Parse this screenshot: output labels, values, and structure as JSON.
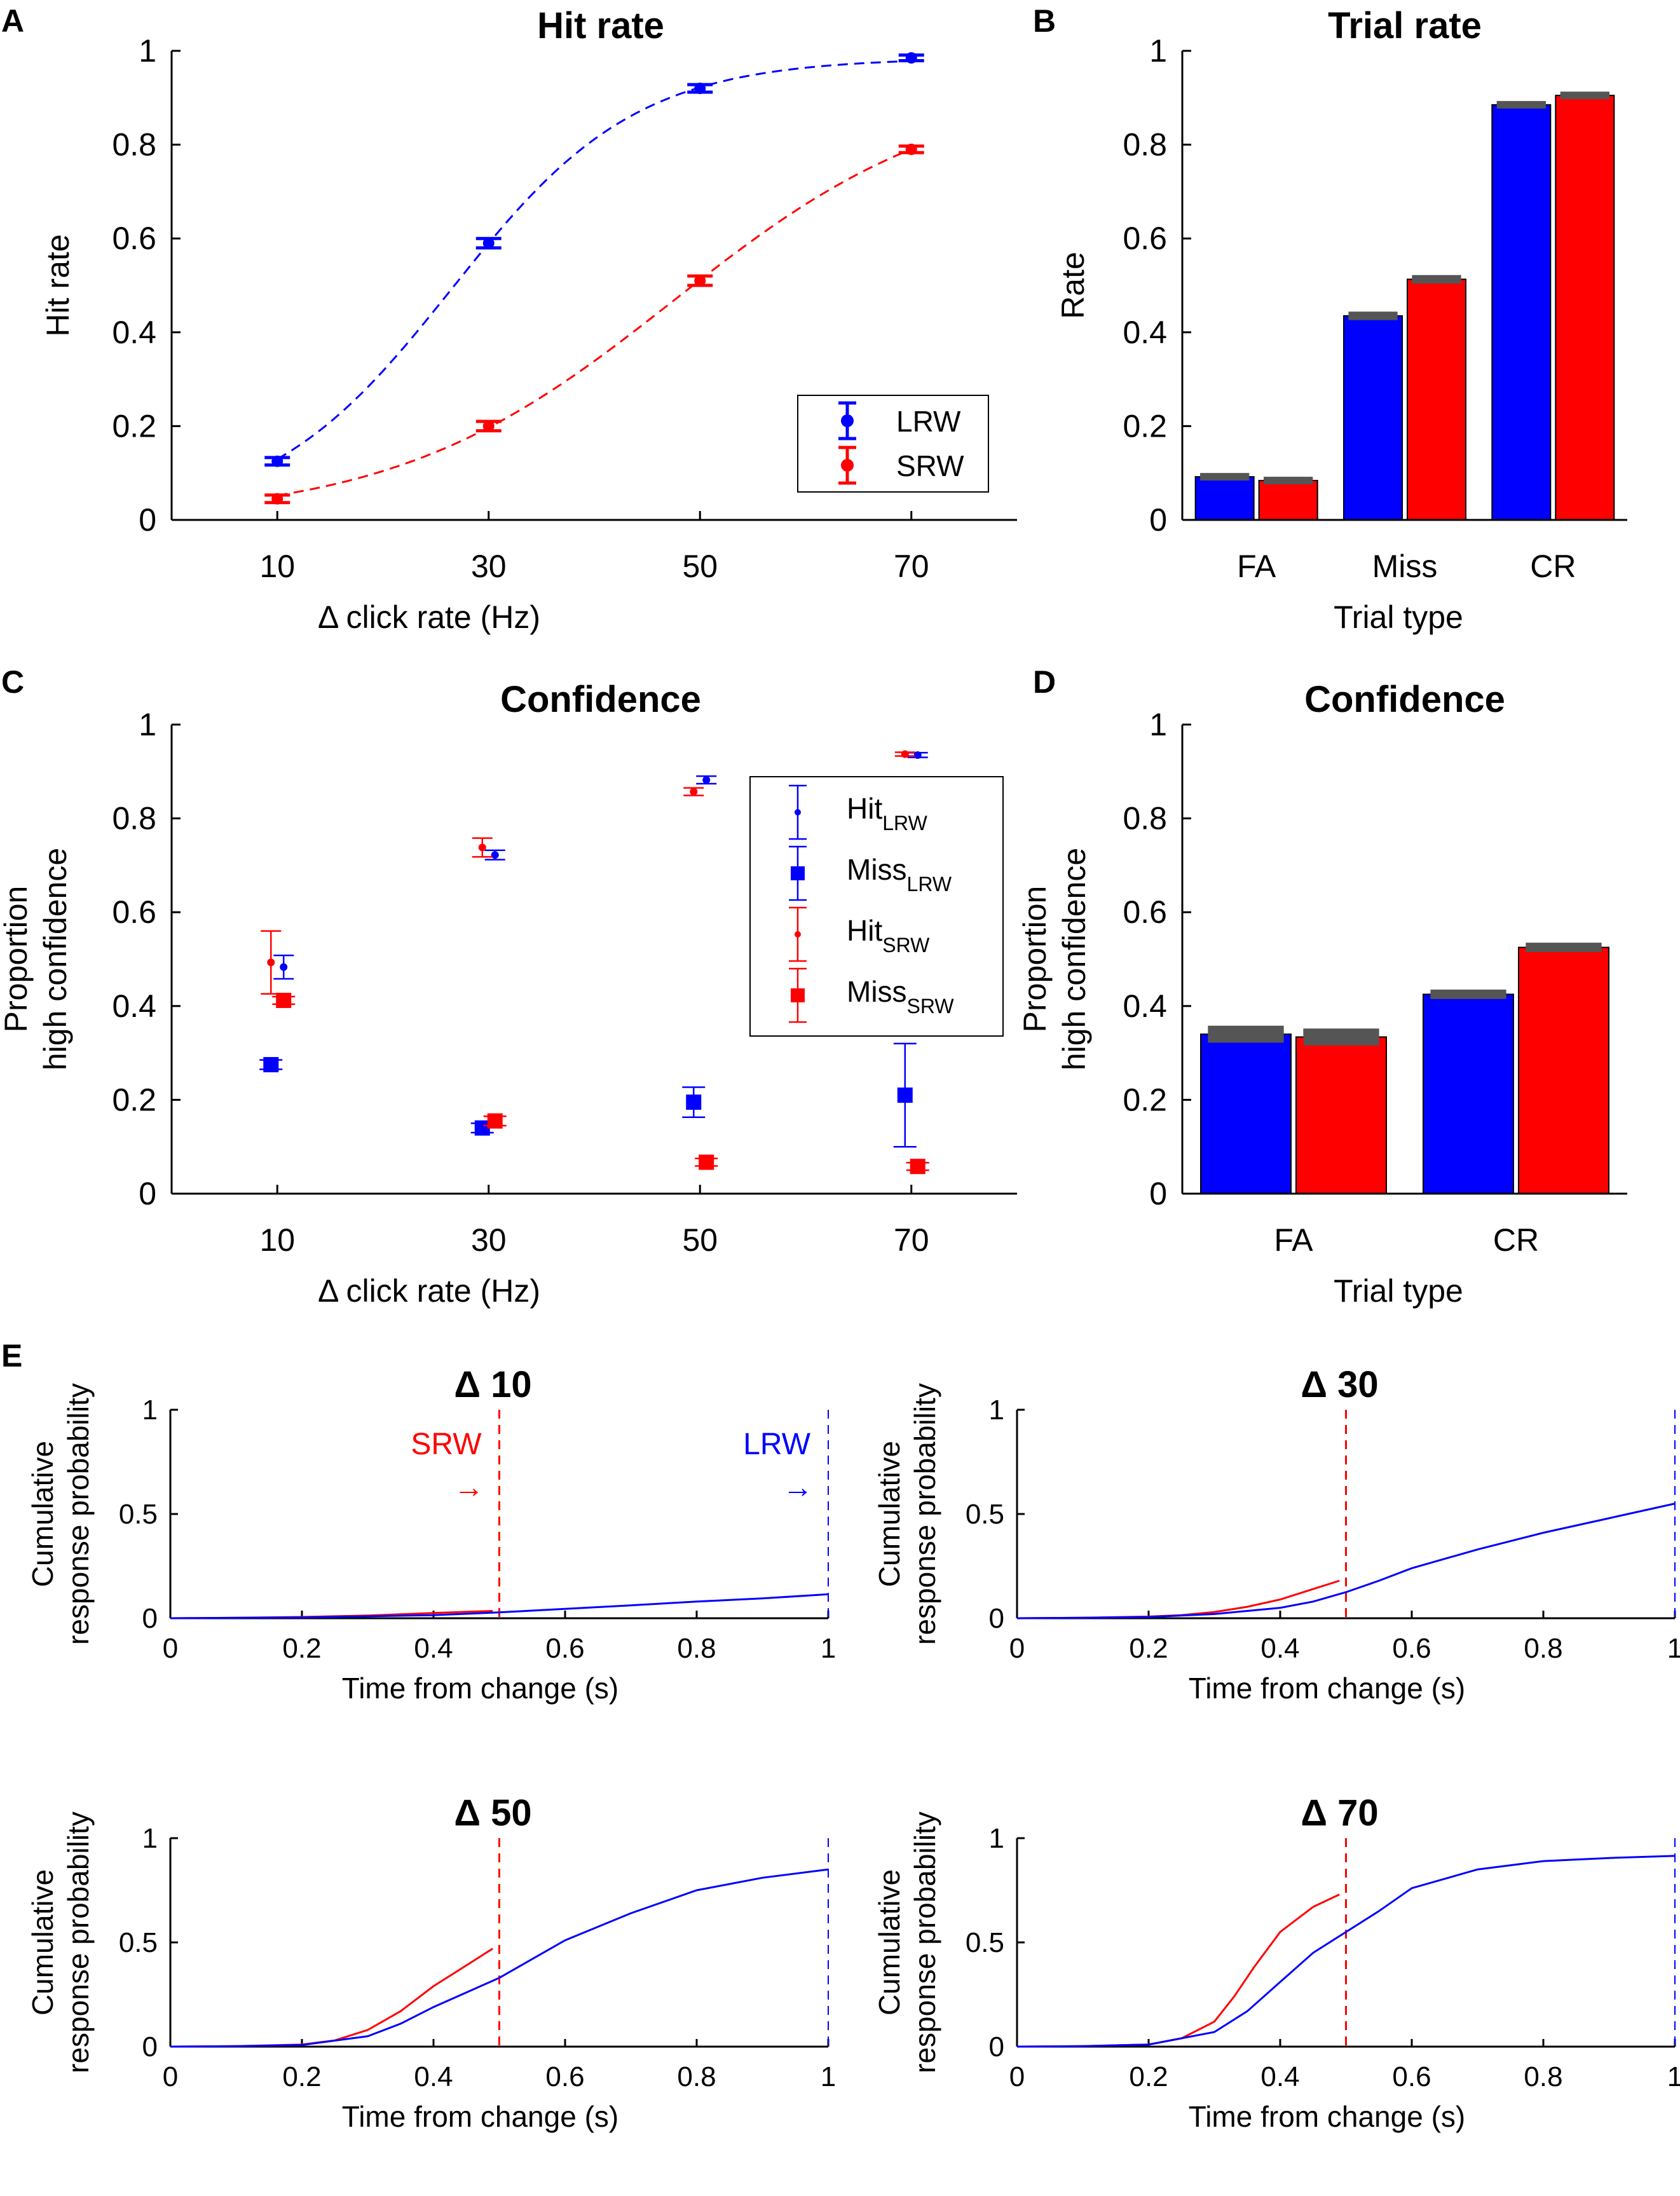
{
  "figure": {
    "panel_letters": [
      "A",
      "B",
      "C",
      "D",
      "E"
    ]
  },
  "colors": {
    "lrw": "#0000ff",
    "srw": "#ff0000",
    "errorbar_cap": "#555555"
  },
  "chart_data": [
    {
      "id": "A",
      "type": "scatter",
      "title": "Hit rate",
      "xlabel": "Δ click rate (Hz)",
      "ylabel": "Hit rate",
      "x": [
        10,
        30,
        50,
        70
      ],
      "xticks": [
        "10",
        "30",
        "50",
        "70"
      ],
      "xlim": [
        0,
        80
      ],
      "ylim": [
        0,
        1
      ],
      "yticks": [
        "0",
        "0.2",
        "0.4",
        "0.6",
        "0.8",
        "1"
      ],
      "legend": {
        "position": "bottom-right",
        "entries": [
          "LRW",
          "SRW"
        ]
      },
      "series": [
        {
          "name": "LRW",
          "color": "#0000ff",
          "values": [
            0.125,
            0.59,
            0.92,
            0.985
          ],
          "errors": [
            0.008,
            0.01,
            0.008,
            0.006
          ],
          "fit": "dashed logistic"
        },
        {
          "name": "SRW",
          "color": "#ff0000",
          "values": [
            0.045,
            0.2,
            0.51,
            0.79
          ],
          "errors": [
            0.008,
            0.01,
            0.01,
            0.007
          ],
          "fit": "dashed logistic"
        }
      ]
    },
    {
      "id": "B",
      "type": "bar",
      "title": "Trial rate",
      "xlabel": "Trial type",
      "ylabel": "Rate",
      "categories": [
        "FA",
        "Miss",
        "CR"
      ],
      "ylim": [
        0,
        1
      ],
      "yticks": [
        "0",
        "0.2",
        "0.4",
        "0.6",
        "0.8",
        "1"
      ],
      "series": [
        {
          "name": "LRW",
          "color": "#0000ff",
          "values": [
            0.092,
            0.435,
            0.885
          ],
          "errors": [
            0.004,
            0.005,
            0.004
          ]
        },
        {
          "name": "SRW",
          "color": "#ff0000",
          "values": [
            0.084,
            0.513,
            0.905
          ],
          "errors": [
            0.004,
            0.005,
            0.004
          ]
        }
      ]
    },
    {
      "id": "C",
      "type": "scatter",
      "title": "Confidence",
      "xlabel": "Δ click rate (Hz)",
      "ylabel_lines": [
        "Proportion",
        "high confidence"
      ],
      "x": [
        10,
        30,
        50,
        70
      ],
      "xticks": [
        "10",
        "30",
        "50",
        "70"
      ],
      "xlim": [
        0,
        80
      ],
      "ylim": [
        0,
        1
      ],
      "yticks": [
        "0",
        "0.2",
        "0.4",
        "0.6",
        "0.8",
        "1"
      ],
      "legend": {
        "position": "top-right",
        "entries": [
          {
            "main": "Hit",
            "sub": "LRW"
          },
          {
            "main": "Miss",
            "sub": "LRW"
          },
          {
            "main": "Hit",
            "sub": "SRW"
          },
          {
            "main": "Miss",
            "sub": "SRW"
          }
        ]
      },
      "series": [
        {
          "name": "Hit LRW",
          "color": "#0000ff",
          "marker": "dot",
          "offset": 0.6,
          "values": [
            0.483,
            0.722,
            0.882,
            0.935
          ],
          "errors": [
            0.025,
            0.01,
            0.008,
            0.005
          ]
        },
        {
          "name": "Miss LRW",
          "color": "#0000ff",
          "marker": "square",
          "offset": -0.6,
          "values": [
            0.275,
            0.14,
            0.195,
            0.21
          ],
          "errors": [
            0.01,
            0.01,
            0.032,
            0.11
          ]
        },
        {
          "name": "Hit SRW",
          "color": "#ff0000",
          "marker": "dot",
          "offset": -0.6,
          "values": [
            0.493,
            0.738,
            0.857,
            0.937
          ],
          "errors": [
            0.067,
            0.02,
            0.008,
            0.004
          ]
        },
        {
          "name": "Miss SRW",
          "color": "#ff0000",
          "marker": "square",
          "offset": 0.6,
          "values": [
            0.412,
            0.155,
            0.067,
            0.058
          ],
          "errors": [
            0.008,
            0.01,
            0.008,
            0.008
          ]
        }
      ]
    },
    {
      "id": "D",
      "type": "bar",
      "title": "Confidence",
      "xlabel": "Trial type",
      "ylabel_lines": [
        "Proportion",
        "high confidence"
      ],
      "categories": [
        "FA",
        "CR"
      ],
      "ylim": [
        0,
        1
      ],
      "yticks": [
        "0",
        "0.2",
        "0.4",
        "0.6",
        "0.8",
        "1"
      ],
      "series": [
        {
          "name": "LRW",
          "color": "#0000ff",
          "values": [
            0.34,
            0.425
          ],
          "errors": [
            0.014,
            0.006
          ]
        },
        {
          "name": "SRW",
          "color": "#ff0000",
          "values": [
            0.334,
            0.525
          ],
          "errors": [
            0.014,
            0.006
          ]
        }
      ]
    },
    {
      "id": "E1",
      "type": "line",
      "title": "Δ 10",
      "xlabel": "Time from change (s)",
      "ylabel_lines": [
        "Cumulative",
        "response probability"
      ],
      "xlim": [
        0,
        1
      ],
      "ylim": [
        0,
        1
      ],
      "xticks": [
        "0",
        "0.2",
        "0.4",
        "0.6",
        "0.8",
        "1"
      ],
      "yticks": [
        "0",
        "0.5",
        "1"
      ],
      "vlines": [
        {
          "x": 0.5,
          "color": "#ff0000"
        },
        {
          "x": 1,
          "color": "#0000ff"
        }
      ],
      "annotations": [
        {
          "label": "SRW",
          "arrow": "→",
          "x": 0.5,
          "color": "#ff0000"
        },
        {
          "label": "LRW",
          "arrow": "→",
          "x": 1,
          "color": "#0000ff"
        }
      ],
      "series": [
        {
          "name": "SRW",
          "color": "#ff0000",
          "x": [
            0,
            0.1,
            0.2,
            0.3,
            0.4,
            0.49
          ],
          "y": [
            0,
            0.002,
            0.006,
            0.013,
            0.025,
            0.035
          ]
        },
        {
          "name": "LRW",
          "color": "#0000ff",
          "x": [
            0,
            0.2,
            0.4,
            0.5,
            0.6,
            0.7,
            0.8,
            0.9,
            1.0
          ],
          "y": [
            0,
            0.004,
            0.015,
            0.028,
            0.045,
            0.062,
            0.08,
            0.095,
            0.115
          ]
        }
      ]
    },
    {
      "id": "E2",
      "type": "line",
      "title": "Δ 30",
      "xlabel": "Time from change (s)",
      "ylabel_lines": [
        "Cumulative",
        "response probability"
      ],
      "xlim": [
        0,
        1
      ],
      "ylim": [
        0,
        1
      ],
      "xticks": [
        "0",
        "0.2",
        "0.4",
        "0.6",
        "0.8",
        "1"
      ],
      "yticks": [
        "0",
        "0.5",
        "1"
      ],
      "vlines": [
        {
          "x": 0.5,
          "color": "#ff0000"
        },
        {
          "x": 1,
          "color": "#0000ff"
        }
      ],
      "series": [
        {
          "name": "SRW",
          "color": "#ff0000",
          "x": [
            0,
            0.1,
            0.2,
            0.25,
            0.3,
            0.35,
            0.4,
            0.45,
            0.49
          ],
          "y": [
            0,
            0.002,
            0.008,
            0.015,
            0.03,
            0.055,
            0.09,
            0.14,
            0.18
          ]
        },
        {
          "name": "LRW",
          "color": "#0000ff",
          "x": [
            0,
            0.1,
            0.2,
            0.3,
            0.4,
            0.45,
            0.5,
            0.55,
            0.6,
            0.7,
            0.8,
            0.9,
            1.0
          ],
          "y": [
            0,
            0.002,
            0.006,
            0.02,
            0.05,
            0.08,
            0.125,
            0.18,
            0.24,
            0.33,
            0.41,
            0.48,
            0.55
          ]
        }
      ]
    },
    {
      "id": "E3",
      "type": "line",
      "title": "Δ 50",
      "xlabel": "Time from change (s)",
      "ylabel_lines": [
        "Cumulative",
        "response probability"
      ],
      "xlim": [
        0,
        1
      ],
      "ylim": [
        0,
        1
      ],
      "xticks": [
        "0",
        "0.2",
        "0.4",
        "0.6",
        "0.8",
        "1"
      ],
      "yticks": [
        "0",
        "0.5",
        "1"
      ],
      "vlines": [
        {
          "x": 0.5,
          "color": "#ff0000"
        },
        {
          "x": 1,
          "color": "#0000ff"
        }
      ],
      "series": [
        {
          "name": "SRW",
          "color": "#ff0000",
          "x": [
            0,
            0.1,
            0.2,
            0.25,
            0.3,
            0.35,
            0.4,
            0.45,
            0.49
          ],
          "y": [
            0,
            0.002,
            0.01,
            0.03,
            0.08,
            0.17,
            0.29,
            0.39,
            0.47
          ]
        },
        {
          "name": "LRW",
          "color": "#0000ff",
          "x": [
            0,
            0.1,
            0.2,
            0.3,
            0.35,
            0.4,
            0.45,
            0.5,
            0.55,
            0.6,
            0.7,
            0.8,
            0.9,
            1.0
          ],
          "y": [
            0,
            0.002,
            0.008,
            0.05,
            0.11,
            0.19,
            0.26,
            0.33,
            0.42,
            0.51,
            0.64,
            0.75,
            0.81,
            0.85
          ]
        }
      ]
    },
    {
      "id": "E4",
      "type": "line",
      "title": "Δ 70",
      "xlabel": "Time from change (s)",
      "ylabel_lines": [
        "Cumulative",
        "response probability"
      ],
      "xlim": [
        0,
        1
      ],
      "ylim": [
        0,
        1
      ],
      "xticks": [
        "0",
        "0.2",
        "0.4",
        "0.6",
        "0.8",
        "1"
      ],
      "yticks": [
        "0",
        "0.5",
        "1"
      ],
      "vlines": [
        {
          "x": 0.5,
          "color": "#ff0000"
        },
        {
          "x": 1,
          "color": "#0000ff"
        }
      ],
      "series": [
        {
          "name": "SRW",
          "color": "#ff0000",
          "x": [
            0,
            0.1,
            0.2,
            0.25,
            0.3,
            0.33,
            0.36,
            0.4,
            0.45,
            0.49
          ],
          "y": [
            0,
            0.002,
            0.01,
            0.04,
            0.12,
            0.24,
            0.38,
            0.55,
            0.67,
            0.73
          ]
        },
        {
          "name": "LRW",
          "color": "#0000ff",
          "x": [
            0,
            0.1,
            0.2,
            0.3,
            0.35,
            0.4,
            0.45,
            0.5,
            0.55,
            0.6,
            0.7,
            0.8,
            0.9,
            1.0
          ],
          "y": [
            0,
            0.002,
            0.01,
            0.07,
            0.17,
            0.31,
            0.45,
            0.55,
            0.65,
            0.76,
            0.85,
            0.89,
            0.905,
            0.915
          ]
        }
      ]
    }
  ]
}
